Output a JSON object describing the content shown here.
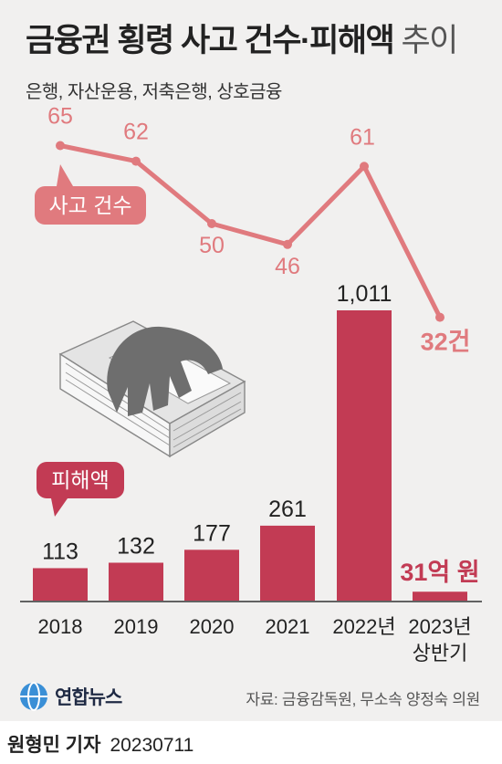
{
  "title": {
    "main": "금융권 횡령 사고 건수·피해액",
    "suffix": "추이"
  },
  "subtitle": "은행, 자산운용, 저축은행, 상호금융",
  "chart_data": {
    "type": "bar+line",
    "categories": [
      "2018",
      "2019",
      "2020",
      "2021",
      "2022년",
      "2023년"
    ],
    "category_sublabels": [
      "",
      "",
      "",
      "",
      "",
      "상반기"
    ],
    "bars": {
      "label": "피해액",
      "values": [
        113,
        132,
        177,
        261,
        1011,
        31
      ],
      "value_labels": [
        "113",
        "132",
        "177",
        "261",
        "1,011",
        "31억 원"
      ],
      "color": "#c23b54"
    },
    "line": {
      "label": "사고 건수",
      "values": [
        65,
        62,
        50,
        46,
        61,
        32
      ],
      "value_labels": [
        "65",
        "62",
        "50",
        "46",
        "61",
        "32건"
      ],
      "color": "#e07a7e"
    }
  },
  "logo": {
    "text": "연합뉴스"
  },
  "source": "자료: 금융감독원, 무소속 양정숙 의원",
  "byline": {
    "reporter": "원형민 기자",
    "date": "20230711"
  },
  "colors": {
    "background": "#f1f0ef",
    "bar": "#c23b54",
    "line": "#e07a7e",
    "axis": "#333333"
  }
}
